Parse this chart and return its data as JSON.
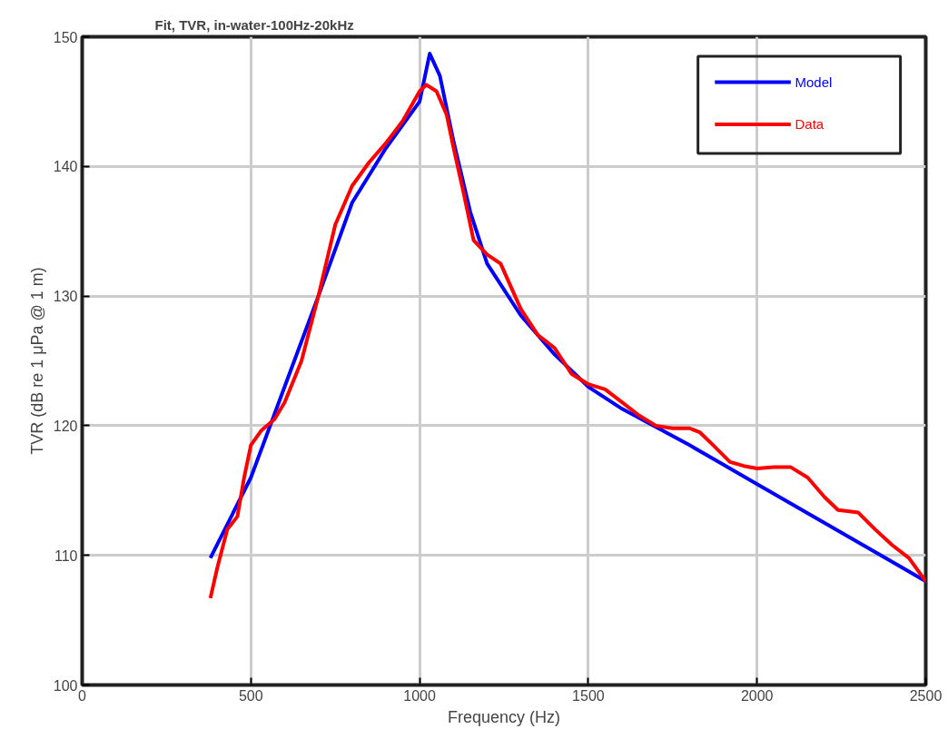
{
  "chart_data": {
    "type": "line",
    "title": "Fit, TVR, in-water-100Hz-20kHz",
    "xlabel": "Frequency (Hz)",
    "ylabel": "TVR (dB re 1 μPa @ 1 m)",
    "xlim": [
      0,
      2500
    ],
    "ylim": [
      100,
      150
    ],
    "xticks": [
      0,
      500,
      1000,
      1500,
      2000,
      2500
    ],
    "yticks": [
      100,
      110,
      120,
      130,
      140,
      150
    ],
    "grid": true,
    "legend": "top right",
    "line_style": "solid",
    "marker": "none",
    "series": [
      {
        "name": "Model",
        "color": "#0000ff",
        "x": [
          380,
          500,
          600,
          700,
          800,
          900,
          1000,
          1030,
          1060,
          1100,
          1150,
          1200,
          1300,
          1400,
          1500,
          1600,
          1700,
          1800,
          2000,
          2200,
          2400,
          2500
        ],
        "values": [
          109.8,
          116,
          123,
          130,
          137.2,
          141.4,
          145,
          148.7,
          147,
          142,
          136.5,
          132.5,
          128.5,
          125.5,
          123,
          121.3,
          119.9,
          118.5,
          115.5,
          112.5,
          109.5,
          108
        ]
      },
      {
        "name": "Data",
        "color": "#ff0000",
        "x": [
          380,
          400,
          430,
          460,
          480,
          500,
          530,
          570,
          600,
          650,
          700,
          750,
          800,
          850,
          900,
          950,
          1000,
          1020,
          1050,
          1080,
          1100,
          1130,
          1160,
          1200,
          1240,
          1300,
          1350,
          1400,
          1450,
          1500,
          1550,
          1600,
          1650,
          1700,
          1750,
          1800,
          1830,
          1870,
          1920,
          1960,
          2000,
          2050,
          2100,
          2150,
          2200,
          2240,
          2300,
          2350,
          2400,
          2450,
          2500
        ],
        "values": [
          106.7,
          109,
          112,
          113,
          116,
          118.5,
          119.6,
          120.5,
          121.8,
          125,
          130,
          135.5,
          138.5,
          140.3,
          141.8,
          143.5,
          145.8,
          146.3,
          145.8,
          144,
          141.5,
          138,
          134.3,
          133.2,
          132.5,
          129,
          127,
          126,
          124,
          123.2,
          122.8,
          121.8,
          120.8,
          120,
          119.8,
          119.8,
          119.5,
          118.5,
          117.2,
          116.9,
          116.7,
          116.8,
          116.8,
          116,
          114.5,
          113.5,
          113.3,
          112,
          110.8,
          109.8,
          108
        ]
      }
    ]
  }
}
